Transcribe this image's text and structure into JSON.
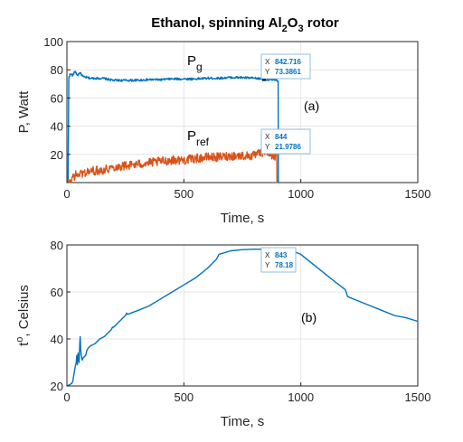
{
  "chart_data": [
    {
      "type": "line",
      "title": "Ethanol, spinning Al2O3 rotor",
      "xlabel": "Time, s",
      "ylabel": "P, Watt",
      "xlim": [
        0,
        1500
      ],
      "ylim": [
        0,
        100
      ],
      "xticks": [
        0,
        500,
        1000,
        1500
      ],
      "yticks": [
        20,
        40,
        60,
        80,
        100
      ],
      "grid": true,
      "annotations": [
        {
          "label": "P",
          "sub": "g",
          "series": "Pg"
        },
        {
          "label": "P",
          "sub": "ref",
          "series": "Pref"
        },
        {
          "label": "(a)"
        }
      ],
      "series": [
        {
          "name": "Pg",
          "color": "#0072bd",
          "noise": 0.8,
          "points": [
            [
              0,
              0
            ],
            [
              5,
              0
            ],
            [
              8,
              75
            ],
            [
              15,
              77
            ],
            [
              25,
              76
            ],
            [
              35,
              79
            ],
            [
              45,
              76
            ],
            [
              55,
              78
            ],
            [
              70,
              75
            ],
            [
              100,
              74
            ],
            [
              150,
              74
            ],
            [
              200,
              72.5
            ],
            [
              250,
              72.5
            ],
            [
              300,
              72.5
            ],
            [
              350,
              73
            ],
            [
              400,
              73
            ],
            [
              450,
              73.5
            ],
            [
              500,
              73.5
            ],
            [
              550,
              73.5
            ],
            [
              600,
              74
            ],
            [
              650,
              74
            ],
            [
              700,
              74.5
            ],
            [
              750,
              74.5
            ],
            [
              800,
              74
            ],
            [
              842.716,
              73.3861
            ],
            [
              870,
              73
            ],
            [
              895,
              72.5
            ],
            [
              903,
              72
            ],
            [
              904,
              0
            ],
            [
              910,
              0
            ]
          ]
        },
        {
          "name": "Pref",
          "color": "#d95319",
          "noise": 3.2,
          "points": [
            [
              0,
              0
            ],
            [
              20,
              0
            ],
            [
              22,
              4
            ],
            [
              50,
              6
            ],
            [
              100,
              8
            ],
            [
              150,
              9
            ],
            [
              200,
              11
            ],
            [
              250,
              12
            ],
            [
              300,
              13
            ],
            [
              350,
              14
            ],
            [
              400,
              15
            ],
            [
              450,
              16
            ],
            [
              500,
              16
            ],
            [
              550,
              17
            ],
            [
              600,
              18
            ],
            [
              650,
              18
            ],
            [
              700,
              19
            ],
            [
              750,
              19
            ],
            [
              800,
              19
            ],
            [
              844,
              21.9786
            ],
            [
              880,
              19
            ],
            [
              897,
              19
            ],
            [
              898,
              0
            ],
            [
              900,
              0
            ]
          ]
        }
      ],
      "datatips": [
        {
          "x_label": "X",
          "x_value": "842.716",
          "y_label": "Y",
          "y_value": "73.3861",
          "x": 842.716,
          "y": 73.3861
        },
        {
          "x_label": "X",
          "x_value": "844",
          "y_label": "Y",
          "y_value": "21.9786",
          "x": 844,
          "y": 21.9786
        }
      ]
    },
    {
      "type": "line",
      "xlabel": "Time, s",
      "ylabel": "t°, Celsius",
      "xlim": [
        0,
        1500
      ],
      "ylim": [
        20,
        80
      ],
      "xticks": [
        0,
        500,
        1000,
        1500
      ],
      "yticks": [
        20,
        40,
        60,
        80
      ],
      "grid": true,
      "annotations": [
        {
          "label": "(b)"
        }
      ],
      "series": [
        {
          "name": "t",
          "color": "#0072bd",
          "noise": 0,
          "points": [
            [
              0,
              20
            ],
            [
              10,
              20.5
            ],
            [
              20,
              21
            ],
            [
              25,
              22
            ],
            [
              30,
              25
            ],
            [
              35,
              28
            ],
            [
              40,
              30
            ],
            [
              42,
              33
            ],
            [
              45,
              29
            ],
            [
              48,
              34
            ],
            [
              52,
              30
            ],
            [
              55,
              38
            ],
            [
              57,
              41
            ],
            [
              59,
              35
            ],
            [
              62,
              33
            ],
            [
              65,
              31
            ],
            [
              70,
              32
            ],
            [
              80,
              33
            ],
            [
              85,
              35
            ],
            [
              90,
              36
            ],
            [
              100,
              37
            ],
            [
              120,
              38
            ],
            [
              140,
              40
            ],
            [
              160,
              41
            ],
            [
              180,
              43
            ],
            [
              190,
              44
            ],
            [
              195,
              45
            ],
            [
              200,
              45
            ],
            [
              220,
              47
            ],
            [
              240,
              49
            ],
            [
              250,
              50
            ],
            [
              255,
              51
            ],
            [
              260,
              50.5
            ],
            [
              300,
              52
            ],
            [
              350,
              54
            ],
            [
              400,
              57
            ],
            [
              450,
              60
            ],
            [
              500,
              63
            ],
            [
              550,
              66
            ],
            [
              600,
              70
            ],
            [
              640,
              74
            ],
            [
              650,
              76
            ],
            [
              700,
              77.5
            ],
            [
              750,
              78
            ],
            [
              800,
              78.2
            ],
            [
              843,
              78.18
            ],
            [
              900,
              78
            ],
            [
              950,
              78
            ],
            [
              1000,
              76
            ],
            [
              1050,
              72
            ],
            [
              1100,
              68
            ],
            [
              1150,
              64
            ],
            [
              1190,
              61
            ],
            [
              1200,
              58
            ],
            [
              1250,
              56
            ],
            [
              1300,
              54
            ],
            [
              1350,
              52
            ],
            [
              1400,
              50
            ],
            [
              1450,
              49
            ],
            [
              1500,
              47.5
            ]
          ]
        }
      ],
      "datatips": [
        {
          "x_label": "X",
          "x_value": "843",
          "y_label": "Y",
          "y_value": "78.18",
          "x": 843,
          "y": 78.18
        }
      ]
    }
  ],
  "title_parts": {
    "pre": "Ethanol, spinning A",
    "mid": "l",
    "sub1": "2",
    "o": "O",
    "sub2": "3",
    "post": " rotor"
  },
  "ylabel_b_parts": {
    "t": "t",
    "sup": "o",
    "rest": ", Celsius"
  },
  "colors": {
    "axis": "#262626",
    "grid": "#e6e6e6",
    "blue": "#0072bd",
    "orange": "#d95319"
  }
}
